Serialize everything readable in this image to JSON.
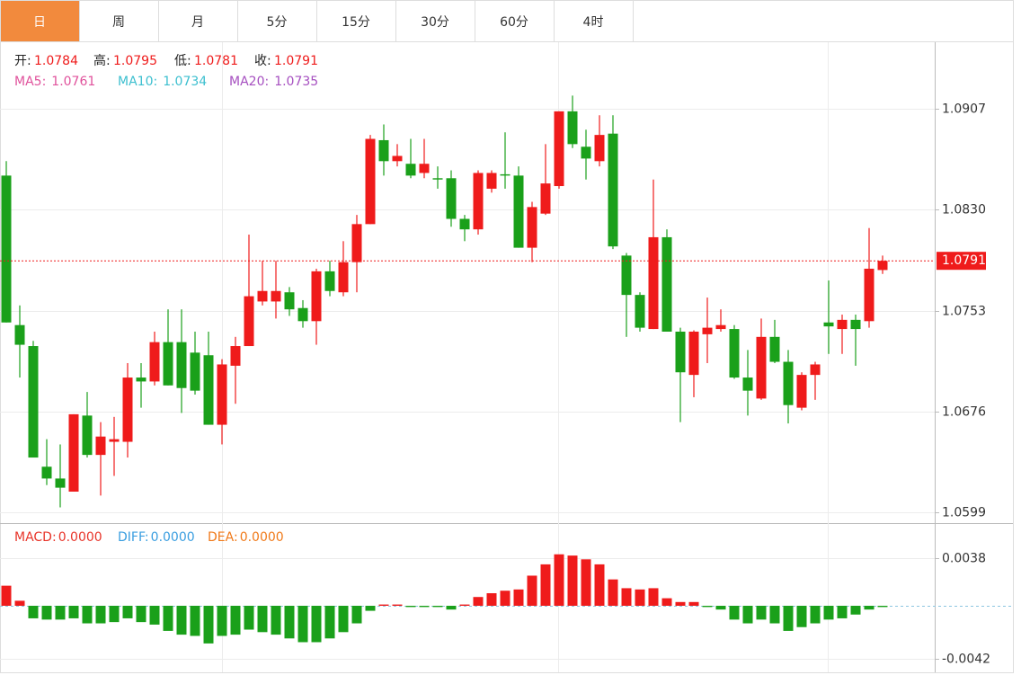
{
  "tabs": [
    "日",
    "周",
    "月",
    "5分",
    "15分",
    "30分",
    "60分",
    "4时"
  ],
  "chart_data": {
    "type": "candlestick",
    "up_color": "#ef1b1b",
    "down_color": "#1aa01a",
    "ohlc_labels": [
      "开:",
      "高:",
      "低:",
      "收:"
    ],
    "ma_legend": [
      {
        "name": "MA5:",
        "value": 1.0761,
        "color": "#e0529c"
      },
      {
        "name": "MA10:",
        "value": 1.0734,
        "color": "#3cbfcf"
      },
      {
        "name": "MA20:",
        "value": 1.0735,
        "color": "#a64fc0"
      }
    ],
    "open": [
      1.0856,
      1.0742,
      1.0726,
      1.0634,
      1.0625,
      1.0615,
      1.0673,
      1.0643,
      1.0653,
      1.0653,
      1.0702,
      1.0699,
      1.0729,
      1.0729,
      1.0721,
      1.0719,
      1.0666,
      1.0711,
      1.0726,
      1.076,
      1.076,
      1.0767,
      1.0755,
      1.0745,
      1.0783,
      1.0767,
      1.079,
      1.0819,
      1.0883,
      1.0867,
      1.0865,
      1.0858,
      1.0854,
      1.0854,
      1.0823,
      1.0815,
      1.0846,
      1.0857,
      1.0856,
      1.0801,
      1.0827,
      1.0848,
      1.0905,
      1.0878,
      1.0867,
      1.0888,
      1.0795,
      1.0765,
      1.0739,
      1.0809,
      1.0737,
      1.0704,
      1.0735,
      1.0739,
      1.0739,
      1.0702,
      1.0686,
      1.0733,
      1.0714,
      1.0679,
      1.0704,
      1.0744,
      1.0739,
      1.0746,
      1.0745,
      1.0784
    ],
    "high": [
      1.0867,
      1.0757,
      1.073,
      1.0655,
      1.0651,
      1.0674,
      1.0691,
      1.0668,
      1.0672,
      1.0713,
      1.0713,
      1.0737,
      1.0754,
      1.0754,
      1.0737,
      1.0737,
      1.0716,
      1.0733,
      1.0811,
      1.0791,
      1.0791,
      1.0771,
      1.0761,
      1.0785,
      1.0791,
      1.0806,
      1.0826,
      1.0887,
      1.0895,
      1.088,
      1.0884,
      1.0884,
      1.0863,
      1.086,
      1.0826,
      1.086,
      1.086,
      1.0889,
      1.0863,
      1.0836,
      1.088,
      1.0905,
      1.0917,
      1.0891,
      1.0902,
      1.0902,
      1.0797,
      1.0767,
      1.0853,
      1.0815,
      1.074,
      1.0738,
      1.0763,
      1.0754,
      1.0742,
      1.0723,
      1.0747,
      1.0746,
      1.0723,
      1.0706,
      1.0714,
      1.0776,
      1.075,
      1.075,
      1.0816,
      1.0795
    ],
    "low": [
      1.0744,
      1.0702,
      1.0641,
      1.062,
      1.0603,
      1.0615,
      1.0641,
      1.0612,
      1.0627,
      1.0641,
      1.0679,
      1.0696,
      1.0696,
      1.0675,
      1.0689,
      1.0666,
      1.0651,
      1.0682,
      1.0726,
      1.0757,
      1.0747,
      1.0749,
      1.074,
      1.0727,
      1.0764,
      1.0764,
      1.0767,
      1.0819,
      1.0856,
      1.0863,
      1.0854,
      1.0854,
      1.0846,
      1.0817,
      1.0806,
      1.0811,
      1.0843,
      1.0846,
      1.0801,
      1.079,
      1.0826,
      1.0846,
      1.0877,
      1.0853,
      1.0863,
      1.08,
      1.0733,
      1.0737,
      1.0739,
      1.0737,
      1.0668,
      1.0687,
      1.0713,
      1.0737,
      1.0701,
      1.0673,
      1.0685,
      1.0713,
      1.0667,
      1.0677,
      1.0685,
      1.072,
      1.072,
      1.0711,
      1.074,
      1.0781
    ],
    "close": [
      1.0744,
      1.0727,
      1.0641,
      1.0625,
      1.0618,
      1.0674,
      1.0643,
      1.0657,
      1.0655,
      1.0702,
      1.0699,
      1.0729,
      1.0696,
      1.0694,
      1.0692,
      1.0666,
      1.0712,
      1.0726,
      1.0764,
      1.0768,
      1.0768,
      1.0754,
      1.0745,
      1.0783,
      1.0768,
      1.079,
      1.0819,
      1.0884,
      1.0867,
      1.0871,
      1.0856,
      1.0865,
      1.0853,
      1.0823,
      1.0815,
      1.0858,
      1.0858,
      1.0856,
      1.0801,
      1.0832,
      1.085,
      1.0905,
      1.088,
      1.0869,
      1.0887,
      1.0802,
      1.0765,
      1.074,
      1.0809,
      1.0737,
      1.0706,
      1.0737,
      1.074,
      1.0742,
      1.0702,
      1.0692,
      1.0733,
      1.0714,
      1.0681,
      1.0704,
      1.0712,
      1.0741,
      1.0746,
      1.0739,
      1.0785,
      1.0791
    ],
    "ylim": [
      1.0591,
      1.0957
    ],
    "yticks": [
      1.0907,
      {
        "value": 1.083,
        "label": "1.0830"
      },
      1.0753,
      1.0676,
      1.0599
    ],
    "macd": {
      "type": "bar",
      "legend": [
        {
          "name": "MACD:",
          "value": 0,
          "value_label": "0.0000",
          "color": "#e8352a"
        },
        {
          "name": "DIFF:",
          "value": 0,
          "value_label": "0.0000",
          "color": "#3a9ee0"
        },
        {
          "name": "DEA:",
          "value": 0,
          "value_label": "0.0000",
          "color": "#f07a1a"
        }
      ],
      "values": [
        0.0016,
        0.0004,
        -0.001,
        -0.0011,
        -0.0011,
        -0.001,
        -0.0014,
        -0.0014,
        -0.0013,
        -0.001,
        -0.0013,
        -0.0015,
        -0.002,
        -0.0023,
        -0.0024,
        -0.003,
        -0.0024,
        -0.0023,
        -0.0019,
        -0.0021,
        -0.0023,
        -0.0026,
        -0.0029,
        -0.0029,
        -0.0026,
        -0.0021,
        -0.0014,
        -0.0004,
        0.0001,
        0.0001,
        -0.0001,
        -0.0001,
        -0.0001,
        -0.0003,
        0.0001,
        0.0007,
        0.001,
        0.0012,
        0.0013,
        0.0024,
        0.0033,
        0.0041,
        0.004,
        0.0037,
        0.0033,
        0.0021,
        0.0014,
        0.0013,
        0.0014,
        0.0006,
        0.0003,
        0.0003,
        -0.0001,
        -0.0003,
        -0.0011,
        -0.0014,
        -0.0011,
        -0.0014,
        -0.002,
        -0.0017,
        -0.0014,
        -0.0011,
        -0.001,
        -0.0007,
        -0.0003,
        -0.0001
      ],
      "ylim": [
        -0.0053,
        0.0063
      ],
      "yticks": [
        0.0038,
        -0.0042
      ]
    }
  }
}
